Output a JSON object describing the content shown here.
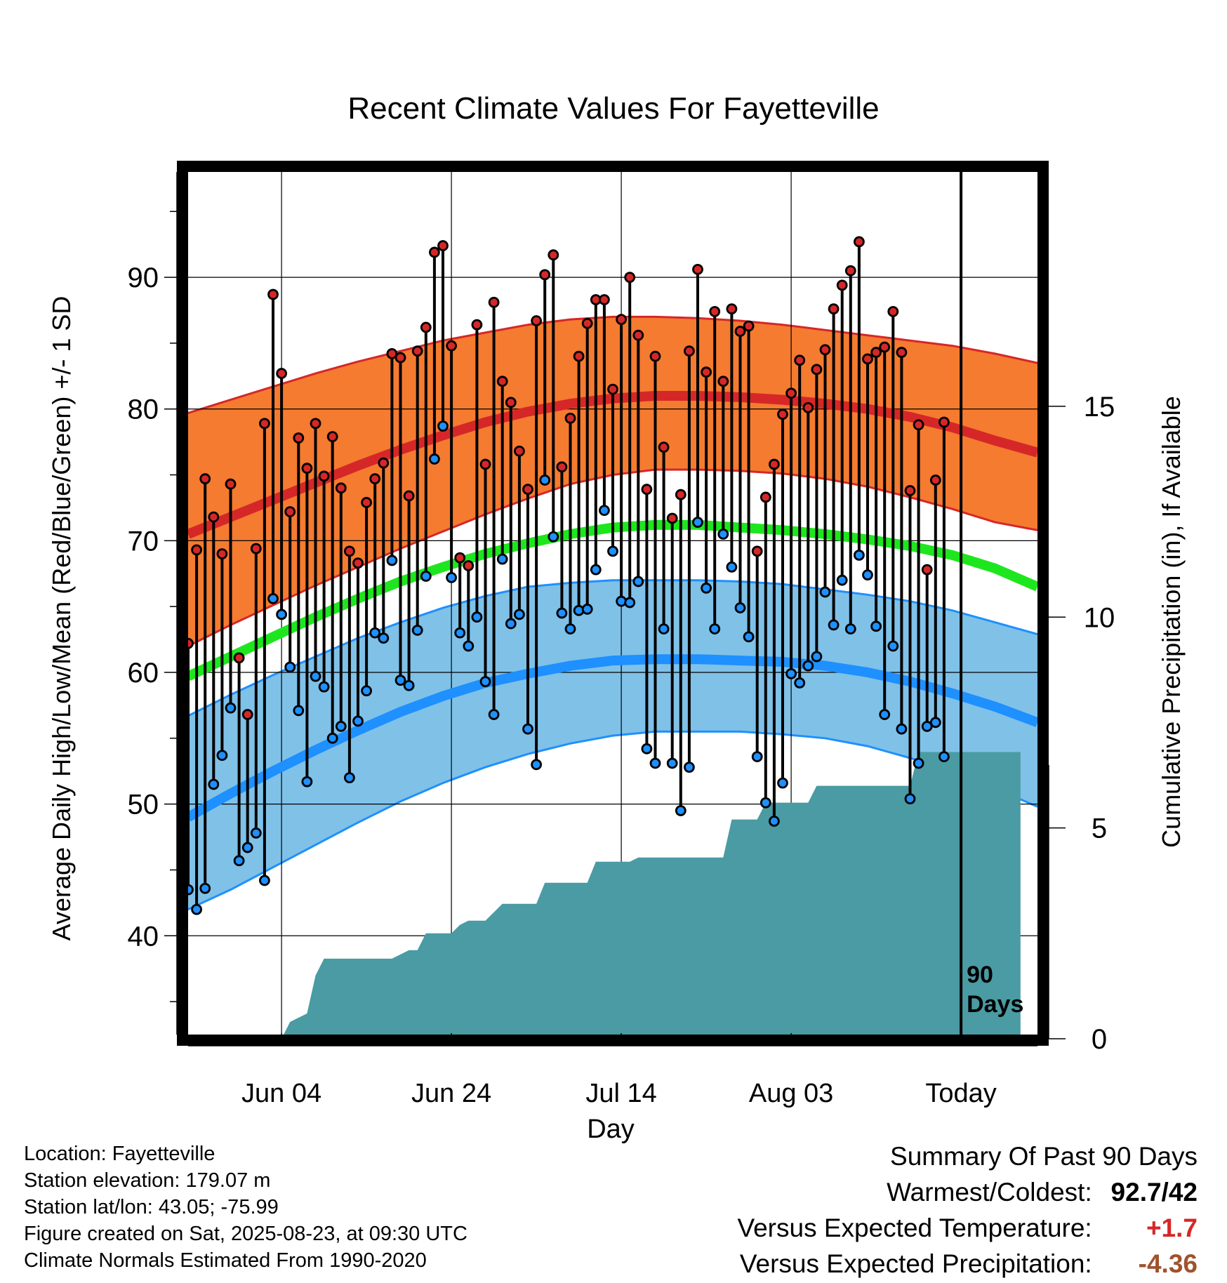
{
  "chart_data": {
    "type": "line",
    "title": "Recent Climate Values For Fayetteville",
    "xlabel": "Day",
    "ylabel_left": "Average Daily High/Low/Mean (Red/Blue/Green) +/- 1 SD",
    "ylabel_right": "Cumulative Precipitation (in), If Available",
    "x_start": "2025-05-24",
    "x_end": "2025-09-01",
    "x_ticks": [
      {
        "date": "2025-06-04",
        "label": "Jun 04"
      },
      {
        "date": "2025-06-24",
        "label": "Jun 24"
      },
      {
        "date": "2025-07-14",
        "label": "Jul 14"
      },
      {
        "date": "2025-08-03",
        "label": "Aug 03"
      },
      {
        "date": "2025-08-23",
        "label": "Today"
      }
    ],
    "ylim": [
      32.5,
      98
    ],
    "y_ticks": [
      40,
      50,
      60,
      70,
      80,
      90
    ],
    "precip_ylim": [
      0,
      20
    ],
    "precip_ticks": [
      0,
      5,
      10,
      15
    ],
    "today_marker": {
      "date": "2025-08-23",
      "label_line1": "90",
      "label_line2": "Days"
    },
    "grid": true,
    "series": [
      {
        "name": "Observed High",
        "color": "#d62728",
        "values": [
          62.2,
          69.3,
          74.7,
          71.8,
          69,
          74.3,
          61.1,
          56.8,
          69.4,
          78.9,
          88.7,
          82.7,
          72.2,
          77.8,
          75.5,
          78.9,
          74.9,
          77.9,
          74.0,
          69.2,
          68.3,
          72.9,
          74.7,
          75.9,
          84.2,
          83.9,
          73.4,
          84.4,
          86.2,
          91.9,
          92.4,
          84.8,
          68.7,
          68.1,
          86.4,
          75.8,
          88.1,
          82.1,
          80.5,
          76.8,
          73.9,
          86.7,
          90.2,
          91.7,
          75.6,
          79.3,
          84.0,
          86.5,
          88.3,
          88.3,
          81.5,
          86.8,
          90.0,
          85.6,
          73.9,
          84.0,
          77.1,
          71.7,
          73.5,
          84.4,
          90.6,
          82.8,
          87.4,
          82.1,
          87.6,
          85.9,
          86.3,
          69.2,
          73.3,
          75.8,
          79.6,
          81.2,
          83.7,
          80.1,
          83.0,
          84.5,
          87.6,
          89.4,
          90.5,
          92.7,
          83.8,
          84.3,
          84.7,
          87.4,
          84.3,
          73.8,
          78.8,
          67.8,
          74.6,
          79.0
        ]
      },
      {
        "name": "Observed Low",
        "color": "#1e90ff",
        "values": [
          43.5,
          42.0,
          43.6,
          51.5,
          53.7,
          57.3,
          45.7,
          46.7,
          47.8,
          44.2,
          65.6,
          64.4,
          60.4,
          57.1,
          51.7,
          59.7,
          58.9,
          55.0,
          55.9,
          52.0,
          56.3,
          58.6,
          63.0,
          62.6,
          68.5,
          59.4,
          59.0,
          63.2,
          67.3,
          76.2,
          78.7,
          67.2,
          63.0,
          62.0,
          64.2,
          59.3,
          56.8,
          68.6,
          63.7,
          64.4,
          55.7,
          53.0,
          74.6,
          70.3,
          64.5,
          63.3,
          64.7,
          64.8,
          67.8,
          72.3,
          69.2,
          65.4,
          65.3,
          66.9,
          54.2,
          53.1,
          63.3,
          53.1,
          49.5,
          52.8,
          71.4,
          66.4,
          63.3,
          70.5,
          68.0,
          64.9,
          62.7,
          53.6,
          50.1,
          48.7,
          51.6,
          59.9,
          59.2,
          60.5,
          61.2,
          66.1,
          63.6,
          67.0,
          63.3,
          68.9,
          67.4,
          63.5,
          56.8,
          62.0,
          55.7,
          50.4,
          53.1,
          55.9,
          56.2,
          53.6
        ]
      },
      {
        "name": "Normal High",
        "color": "#d62728",
        "values": [
          70.5,
          71.8,
          73.1,
          74.4,
          75.7,
          76.9,
          78.0,
          79.0,
          79.8,
          80.4,
          80.8,
          81.0,
          81.0,
          80.9,
          80.7,
          80.4,
          80.0,
          79.4,
          78.6,
          77.6,
          76.7
        ]
      },
      {
        "name": "Normal High +/- 1 SD",
        "color": "#f47b30",
        "upper": [
          79.7,
          80.7,
          81.7,
          82.7,
          83.6,
          84.4,
          85.2,
          85.8,
          86.4,
          86.8,
          87.0,
          87.0,
          86.9,
          86.7,
          86.4,
          86.0,
          85.6,
          85.2,
          84.8,
          84.2,
          83.5
        ],
        "lower": [
          62.0,
          63.6,
          65.1,
          66.6,
          68.0,
          69.4,
          70.7,
          72.0,
          73.2,
          74.3,
          75.0,
          75.4,
          75.4,
          75.3,
          75.1,
          74.7,
          74.1,
          73.3,
          72.4,
          71.4,
          70.8
        ]
      },
      {
        "name": "Normal Mean",
        "color": "#1ee61e",
        "values": [
          59.7,
          61.2,
          62.7,
          64.2,
          65.6,
          66.9,
          68.0,
          69.0,
          69.8,
          70.5,
          71.0,
          71.2,
          71.2,
          71.0,
          70.8,
          70.5,
          70.1,
          69.6,
          68.9,
          67.9,
          66.5
        ]
      },
      {
        "name": "Normal Low",
        "color": "#1e90ff",
        "values": [
          49.0,
          50.8,
          52.5,
          54.1,
          55.6,
          57.0,
          58.2,
          59.2,
          59.9,
          60.5,
          60.9,
          61.0,
          61.0,
          60.9,
          60.8,
          60.5,
          60.0,
          59.3,
          58.4,
          57.4,
          56.2
        ]
      },
      {
        "name": "Normal Low +/- 1 SD",
        "color": "#80c1e8",
        "upper": [
          56.7,
          58.3,
          59.8,
          61.2,
          62.6,
          63.8,
          64.9,
          65.8,
          66.5,
          66.8,
          67.0,
          67.0,
          67.0,
          66.9,
          66.7,
          66.3,
          65.9,
          65.4,
          64.7,
          63.8,
          62.9
        ],
        "lower": [
          42.0,
          43.5,
          45.2,
          46.9,
          48.6,
          50.2,
          51.6,
          52.8,
          53.8,
          54.6,
          55.2,
          55.5,
          55.5,
          55.5,
          55.3,
          55.0,
          54.4,
          53.5,
          52.5,
          51.2,
          49.8
        ]
      },
      {
        "name": "Cumulative Precipitation",
        "color": "#4a9ba3",
        "values": [
          0,
          0,
          0,
          0,
          0,
          0,
          0,
          0,
          0,
          0,
          0,
          0,
          0.4,
          0.5,
          0.6,
          1.5,
          1.9,
          1.9,
          1.9,
          1.9,
          1.9,
          1.9,
          1.9,
          1.9,
          1.9,
          2.0,
          2.1,
          2.1,
          2.5,
          2.5,
          2.5,
          2.5,
          2.7,
          2.8,
          2.8,
          2.8,
          3.0,
          3.2,
          3.2,
          3.2,
          3.2,
          3.2,
          3.7,
          3.7,
          3.7,
          3.7,
          3.7,
          3.7,
          4.2,
          4.2,
          4.2,
          4.2,
          4.2,
          4.3,
          4.3,
          4.3,
          4.3,
          4.3,
          4.3,
          4.3,
          4.3,
          4.3,
          4.3,
          4.3,
          5.2,
          5.2,
          5.2,
          5.2,
          5.6,
          5.6,
          5.6,
          5.6,
          5.6,
          5.6,
          6.0,
          6.0,
          6.0,
          6.0,
          6.0,
          6.0,
          6.0,
          6.0,
          6.0,
          6.0,
          6.0,
          6.0,
          6.8,
          6.8,
          6.8,
          6.8,
          6.8,
          6.8,
          6.8,
          6.8,
          6.8,
          6.8,
          6.8,
          6.8,
          6.8
        ]
      }
    ],
    "normals_dates": [
      "2025-05-24",
      "2025-05-29",
      "2025-06-03",
      "2025-06-08",
      "2025-06-13",
      "2025-06-18",
      "2025-06-23",
      "2025-06-28",
      "2025-07-03",
      "2025-07-08",
      "2025-07-13",
      "2025-07-18",
      "2025-07-23",
      "2025-07-28",
      "2025-08-02",
      "2025-08-07",
      "2025-08-12",
      "2025-08-17",
      "2025-08-22",
      "2025-08-27",
      "2025-09-01"
    ]
  },
  "metadata": {
    "line1": "Location: Fayetteville",
    "line2": "Station elevation: 179.07 m",
    "line3": "Station lat/lon: 43.05; -75.99",
    "line4": "Figure created on Sat, 2025-08-23, at 09:30 UTC",
    "line5": "Climate Normals Estimated From 1990-2020"
  },
  "summary": {
    "heading": "Summary Of Past 90 Days",
    "warm_cold_label": "Warmest/Coldest:",
    "warm_cold_value": "92.7/42",
    "temp_label": "Versus Expected Temperature:",
    "temp_value": "+1.7",
    "temp_color": "#d62728",
    "precip_label": "Versus Expected Precipitation:",
    "precip_value": "-4.36",
    "precip_color": "#a0522d"
  }
}
